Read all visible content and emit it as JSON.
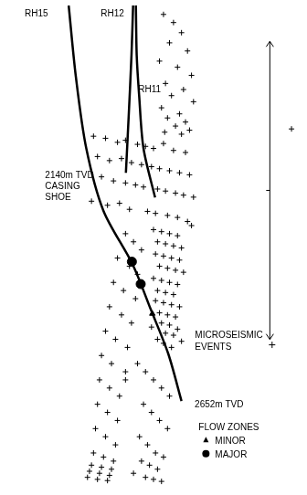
{
  "chart_data": {
    "type": "scatter",
    "xlim": [
      0,
      740
    ],
    "ylim": [
      2870,
      1678
    ],
    "tick_labels": false,
    "grid": false,
    "legend": "bottom right",
    "legend_title": "FLOW ZONES",
    "series": [
      {
        "name": "MICROSEISMIC EVENTS",
        "type": "scatter",
        "marker": "cross",
        "color": "#000000",
        "x": [
          395,
          420,
          440,
          410,
          455,
          385,
          430,
          465,
          400,
          445,
          415,
          470,
          390,
          435,
          405,
          450,
          425,
          460,
          398,
          440,
          220,
          250,
          280,
          300,
          330,
          350,
          370,
          395,
          420,
          450,
          230,
          260,
          290,
          315,
          340,
          365,
          385,
          410,
          435,
          460,
          240,
          270,
          300,
          325,
          345,
          380,
          400,
          425,
          445,
          470,
          215,
          255,
          285,
          310,
          355,
          375,
          405,
          430,
          455,
          465,
          370,
          390,
          410,
          430,
          380,
          400,
          420,
          440,
          375,
          395,
          415,
          435,
          385,
          405,
          425,
          445,
          370,
          390,
          410,
          430,
          380,
          400,
          420,
          375,
          395,
          415,
          435,
          385,
          405,
          425,
          390,
          410,
          365,
          430,
          400,
          420,
          380,
          440,
          395,
          415,
          300,
          320,
          340,
          280,
          310,
          330,
          270,
          295,
          325,
          260,
          290,
          315,
          250,
          275,
          305,
          240,
          265,
          300,
          235,
          260,
          285,
          230,
          255,
          280,
          225,
          250,
          275,
          220,
          245,
          270,
          215,
          240,
          265,
          210,
          235,
          260,
          205,
          230,
          255,
          300,
          330,
          350,
          370,
          390,
          410,
          345,
          365,
          385,
          405,
          335,
          355,
          375,
          395,
          340,
          360,
          380,
          320,
          350,
          370,
          390,
          715
        ],
        "values": [
          1700,
          1720,
          1745,
          1770,
          1790,
          1815,
          1830,
          1850,
          1870,
          1885,
          1900,
          1915,
          1930,
          1945,
          1955,
          1965,
          1975,
          1985,
          1990,
          1995,
          2000,
          2005,
          2015,
          2010,
          2020,
          2025,
          2030,
          2018,
          2035,
          2040,
          2050,
          2060,
          2055,
          2065,
          2070,
          2075,
          2080,
          2085,
          2090,
          2095,
          2100,
          2110,
          2115,
          2120,
          2125,
          2130,
          2135,
          2140,
          2145,
          2150,
          2160,
          2170,
          2165,
          2180,
          2185,
          2190,
          2195,
          2200,
          2210,
          2220,
          2230,
          2235,
          2240,
          2245,
          2260,
          2265,
          2270,
          2275,
          2290,
          2295,
          2300,
          2305,
          2320,
          2325,
          2330,
          2335,
          2350,
          2355,
          2360,
          2365,
          2380,
          2385,
          2390,
          2405,
          2410,
          2415,
          2420,
          2435,
          2440,
          2445,
          2460,
          2465,
          2470,
          2475,
          2485,
          2490,
          2500,
          2505,
          2510,
          2520,
          2240,
          2260,
          2280,
          2300,
          2320,
          2340,
          2360,
          2380,
          2400,
          2420,
          2440,
          2460,
          2480,
          2500,
          2520,
          2540,
          2560,
          2580,
          2600,
          2620,
          2640,
          2660,
          2680,
          2700,
          2720,
          2740,
          2760,
          2780,
          2790,
          2800,
          2810,
          2815,
          2820,
          2825,
          2830,
          2835,
          2840,
          2845,
          2848,
          2600,
          2560,
          2580,
          2600,
          2620,
          2640,
          2660,
          2680,
          2700,
          2720,
          2740,
          2760,
          2780,
          2790,
          2800,
          2810,
          2820,
          2830,
          2840,
          2845,
          2850,
          1982
        ]
      },
      {
        "name": "MINOR",
        "type": "scatter",
        "marker": "triangle",
        "color": "#000000",
        "x": [
          367
        ],
        "values": [
          2437
        ]
      },
      {
        "name": "MAJOR",
        "type": "scatter",
        "marker": "circle",
        "color": "#000000",
        "x": [
          316,
          338
        ],
        "values": [
          2309,
          2364
        ]
      },
      {
        "type": "line",
        "line_style": "solid",
        "color": "#000000",
        "x": [
          158,
          176,
          202,
          245,
          318,
          363,
          407,
          440
        ],
        "values": [
          1678,
          1854,
          2030,
          2184,
          2316,
          2426,
          2536,
          2652
        ]
      },
      {
        "type": "line",
        "line_style": "solid",
        "color": "#000000",
        "x": [
          319,
          315,
          308,
          301
        ],
        "values": [
          1678,
          1800,
          1950,
          2090
        ]
      },
      {
        "type": "line",
        "line_style": "solid",
        "color": "#000000",
        "x": [
          326,
          328,
          334,
          345,
          374
        ],
        "values": [
          1678,
          1800,
          1898,
          2030,
          2151
        ]
      }
    ],
    "annotations": [
      {
        "text": "RH15",
        "x": 48,
        "y": 1706
      },
      {
        "text": "RH12",
        "x": 238,
        "y": 1706
      },
      {
        "text": "RH11",
        "x": 332,
        "y": 1891
      },
      {
        "text": "2140m TVD\nCASING\nSHOE",
        "x": 99,
        "y": 2103
      },
      {
        "text": "2652m TVD",
        "x": 473,
        "y": 2668
      }
    ]
  }
}
